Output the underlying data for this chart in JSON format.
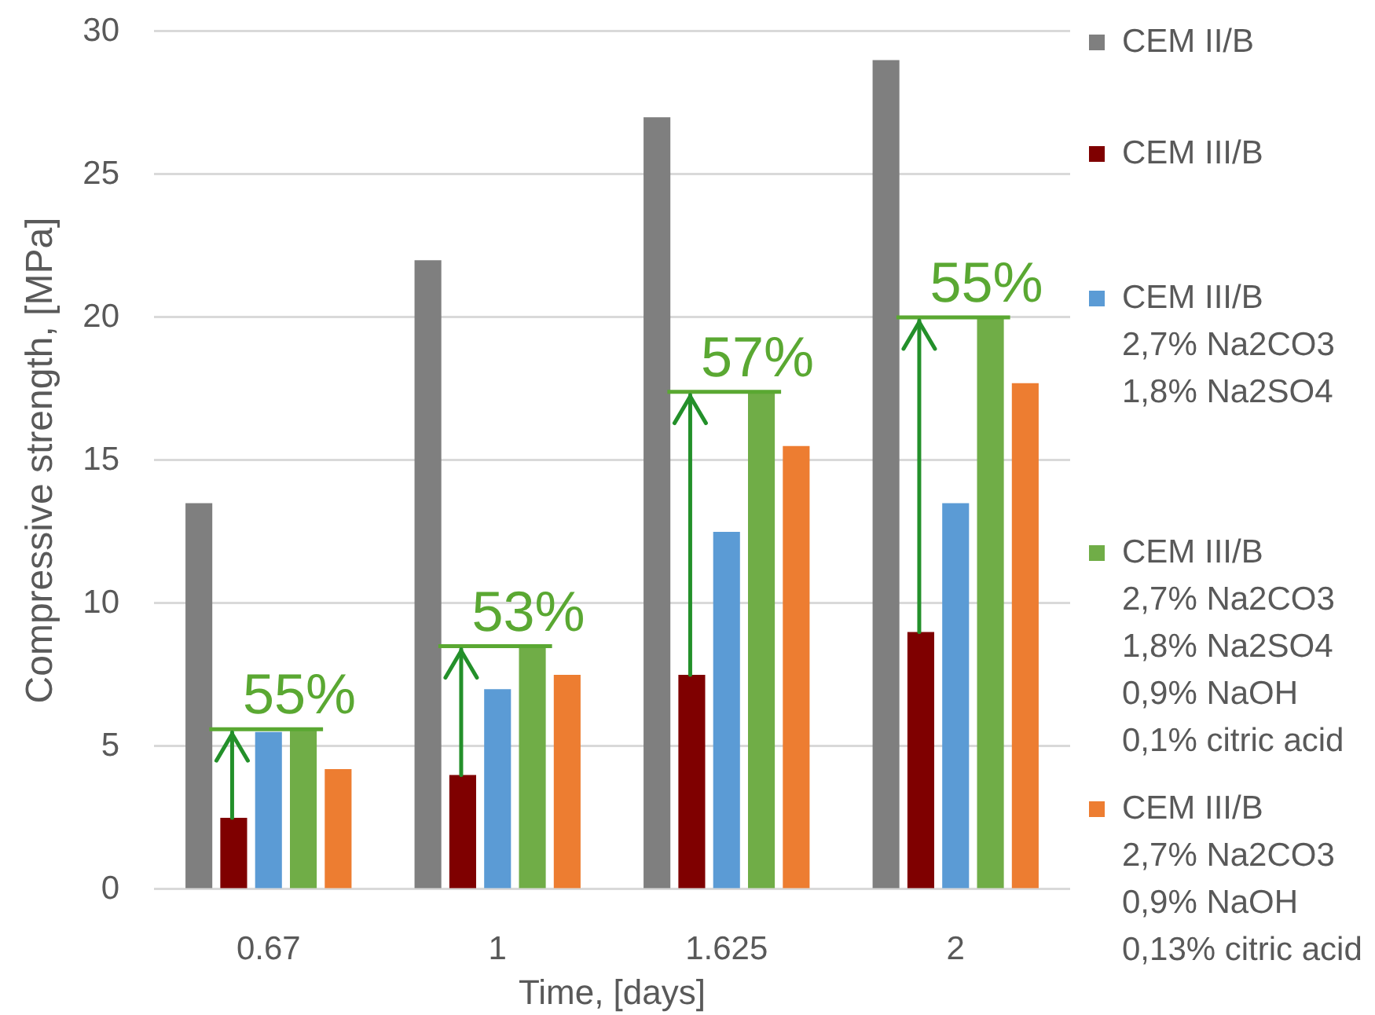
{
  "chart_data": {
    "type": "bar",
    "xlabel": "Time, [days]",
    "ylabel": "Compressive strength, [MPa]",
    "categories": [
      "0.67",
      "1",
      "1.625",
      "2"
    ],
    "series": [
      {
        "name": "CEM II/B",
        "color": "#7f7f7f",
        "values": [
          13.5,
          22,
          27,
          29
        ]
      },
      {
        "name": "CEM III/B",
        "color": "#7f0000",
        "values": [
          2.5,
          4,
          7.5,
          9
        ]
      },
      {
        "name": "CEM III/B\n2,7% Na2CO3\n1,8% Na2SO4",
        "color": "#5b9bd5",
        "values": [
          5.5,
          7,
          12.5,
          13.5
        ]
      },
      {
        "name": "CEM III/B\n2,7% Na2CO3\n1,8% Na2SO4\n0,9% NaOH\n0,1% citric acid",
        "color": "#70ad47",
        "values": [
          5.6,
          8.5,
          17.4,
          20
        ]
      },
      {
        "name": "CEM III/B\n2,7% Na2CO3\n0,9% NaOH\n0,13% citric acid",
        "color": "#ed7d31",
        "values": [
          4.2,
          7.5,
          15.5,
          17.7
        ]
      }
    ],
    "ylim": [
      0,
      30
    ],
    "yticks": [
      0,
      5,
      10,
      15,
      20,
      25,
      30
    ],
    "grid": "y",
    "legend": "right",
    "annotations": [
      {
        "text": "55%",
        "y": 5.6
      },
      {
        "text": "53%",
        "y": 8.5
      },
      {
        "text": "57%",
        "y": 17.4
      },
      {
        "text": "55%",
        "y": 20
      }
    ]
  }
}
